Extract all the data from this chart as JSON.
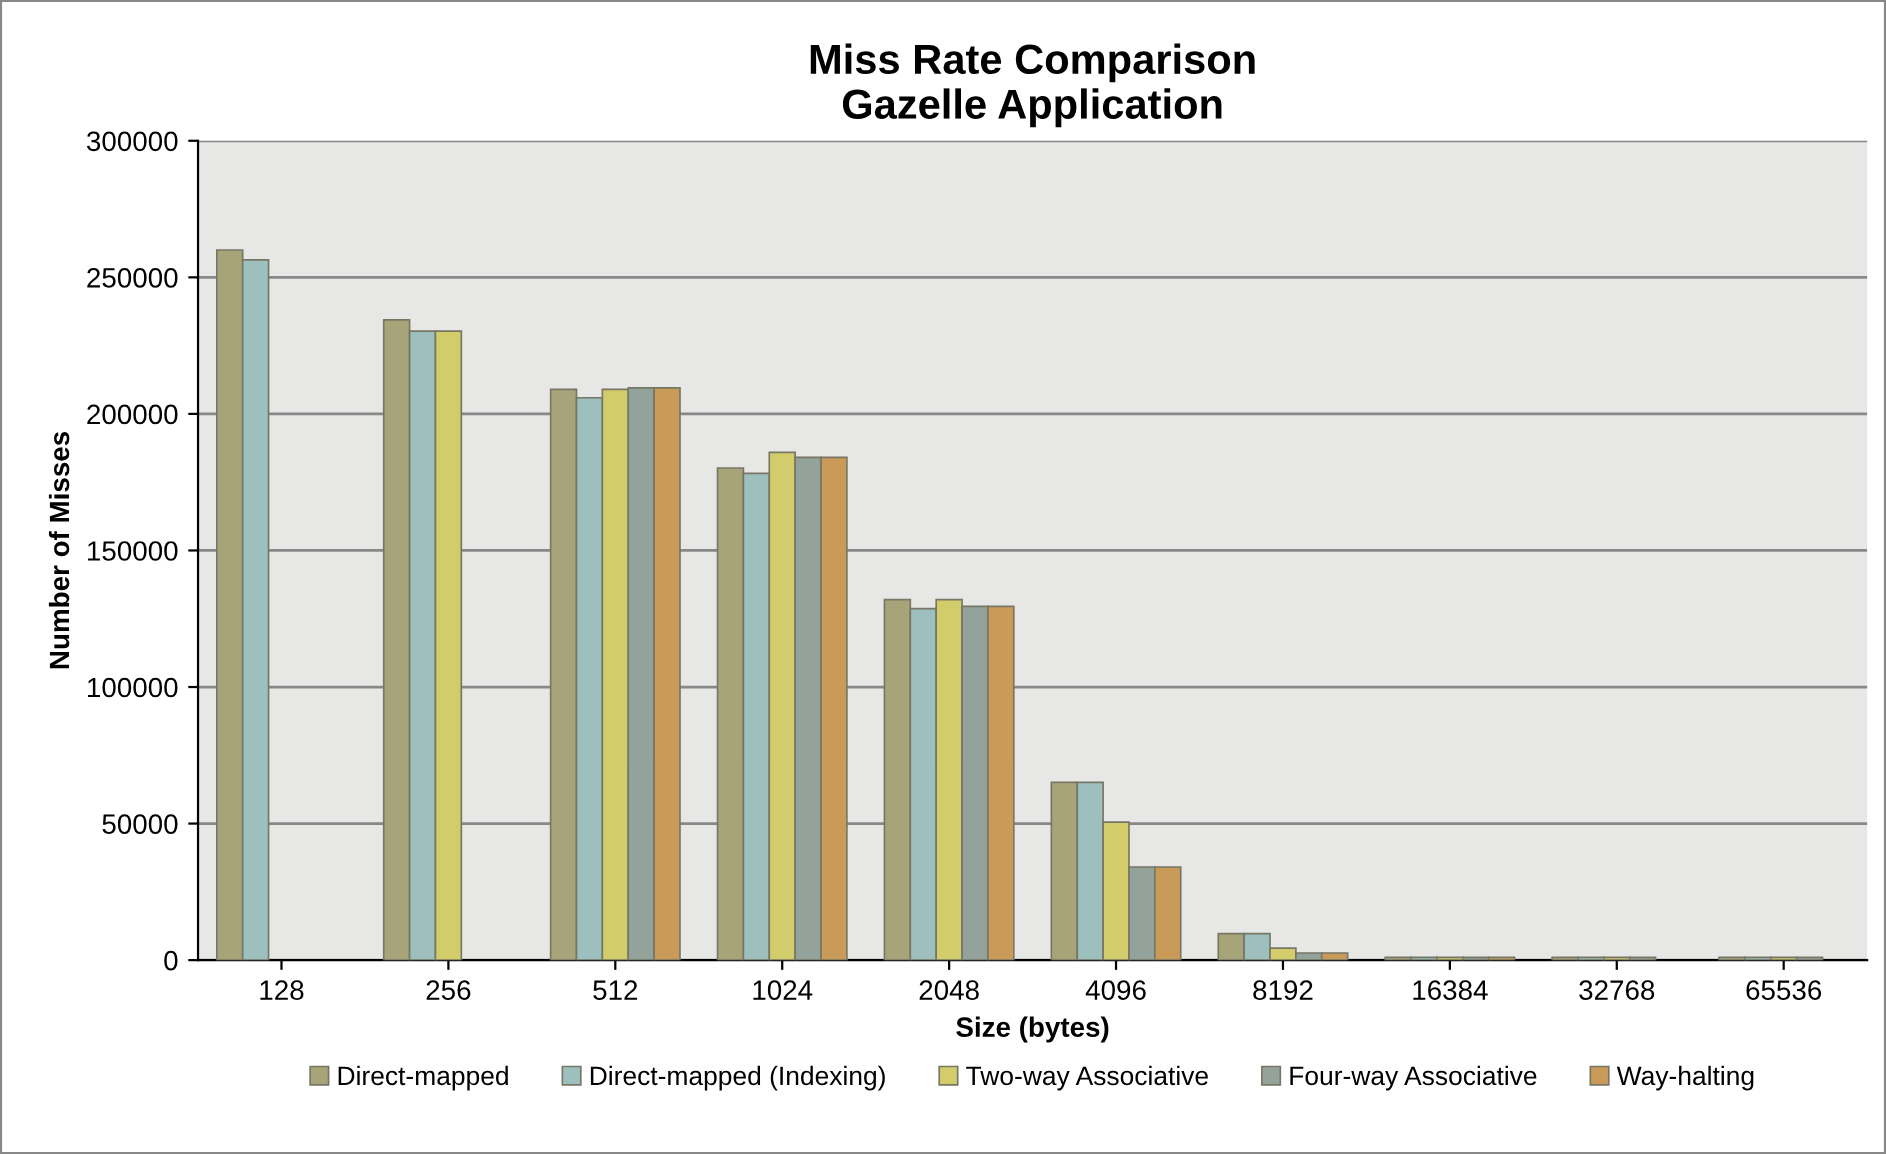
{
  "chart_data": {
    "type": "bar",
    "title": "Miss Rate Comparison\nGazelle Application",
    "xlabel": "Size (bytes)",
    "ylabel": "Number of Misses",
    "categories": [
      "128",
      "256",
      "512",
      "1024",
      "2048",
      "4096",
      "8192",
      "16384",
      "32768",
      "65536"
    ],
    "ylim": [
      0,
      300000
    ],
    "yticks": [
      0,
      50000,
      100000,
      150000,
      200000,
      250000,
      300000
    ],
    "grid": "y",
    "legend": "bottom",
    "series": [
      {
        "name": "Direct-mapped",
        "color": "#a8a47a",
        "values": [
          260000,
          234400,
          209000,
          180200,
          132000,
          65100,
          9700,
          1000,
          1000,
          1000
        ]
      },
      {
        "name": "Direct-mapped (Indexing)",
        "color": "#9dbfbe",
        "values": [
          256400,
          230300,
          205900,
          178200,
          128700,
          65100,
          9700,
          1000,
          1000,
          1000
        ]
      },
      {
        "name": "Two-way Associative",
        "color": "#d2cc6a",
        "values": [
          null,
          230300,
          209000,
          185900,
          132000,
          50500,
          4400,
          1000,
          1000,
          1000
        ]
      },
      {
        "name": "Four-way Associative",
        "color": "#93a39b",
        "values": [
          null,
          null,
          209500,
          184100,
          129500,
          34100,
          2600,
          1000,
          1000,
          1000
        ]
      },
      {
        "name": "Way-halting",
        "color": "#c99a58",
        "values": [
          null,
          null,
          209500,
          184100,
          129500,
          34100,
          2600,
          1000,
          null,
          null
        ]
      }
    ]
  }
}
